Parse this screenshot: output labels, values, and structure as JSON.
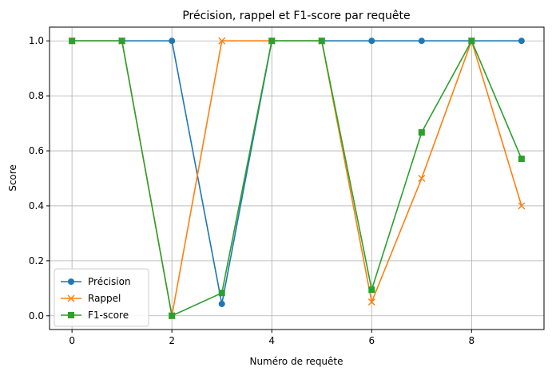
{
  "chart_data": {
    "type": "line",
    "title": "Précision, rappel et F1-score par requête",
    "xlabel": "Numéro de requête",
    "ylabel": "Score",
    "xlim": [
      -0.45,
      9.45
    ],
    "ylim": [
      -0.05,
      1.05
    ],
    "xticks": [
      "0",
      "2",
      "4",
      "6",
      "8"
    ],
    "yticks": [
      "0.0",
      "0.2",
      "0.4",
      "0.6",
      "0.8",
      "1.0"
    ],
    "grid": true,
    "legend_position": "lower-left",
    "x": [
      0,
      1,
      2,
      3,
      4,
      5,
      6,
      7,
      8,
      9
    ],
    "series": [
      {
        "name": "Précision",
        "color": "#1f77b4",
        "marker": "circle",
        "values": [
          1.0,
          1.0,
          1.0,
          0.043,
          1.0,
          1.0,
          1.0,
          1.0,
          1.0,
          1.0
        ]
      },
      {
        "name": "Rappel",
        "color": "#ff7f0e",
        "marker": "x",
        "values": [
          1.0,
          1.0,
          0.0,
          1.0,
          1.0,
          1.0,
          0.05,
          0.5,
          1.0,
          0.4
        ]
      },
      {
        "name": "F1-score",
        "color": "#2ca02c",
        "marker": "square",
        "values": [
          1.0,
          1.0,
          0.0,
          0.083,
          1.0,
          1.0,
          0.095,
          0.667,
          1.0,
          0.571
        ]
      }
    ]
  }
}
